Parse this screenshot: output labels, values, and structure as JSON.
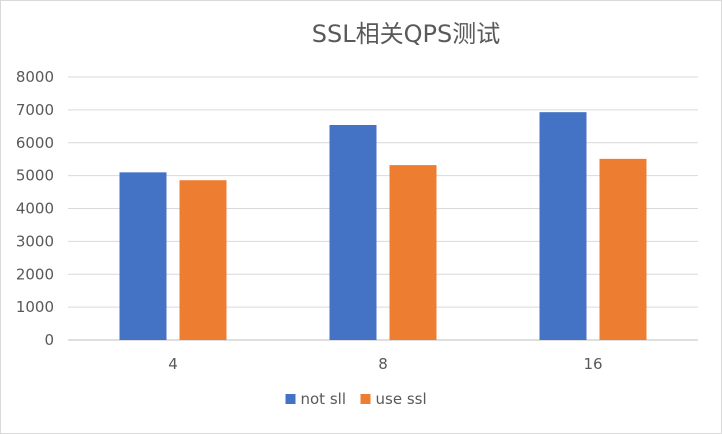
{
  "chart_data": {
    "type": "bar",
    "title": "SSL相关QPS测试",
    "categories": [
      "4",
      "8",
      "16"
    ],
    "series": [
      {
        "name": "not sll",
        "color": "#4472C4",
        "values": [
          5100,
          6540,
          6930
        ]
      },
      {
        "name": "use ssl",
        "color": "#ED7D31",
        "values": [
          4860,
          5320,
          5510
        ]
      }
    ],
    "ylim": [
      0,
      8000
    ],
    "yticks": [
      0,
      1000,
      2000,
      3000,
      4000,
      5000,
      6000,
      7000,
      8000
    ],
    "grid": true,
    "legend_position": "bottom"
  }
}
